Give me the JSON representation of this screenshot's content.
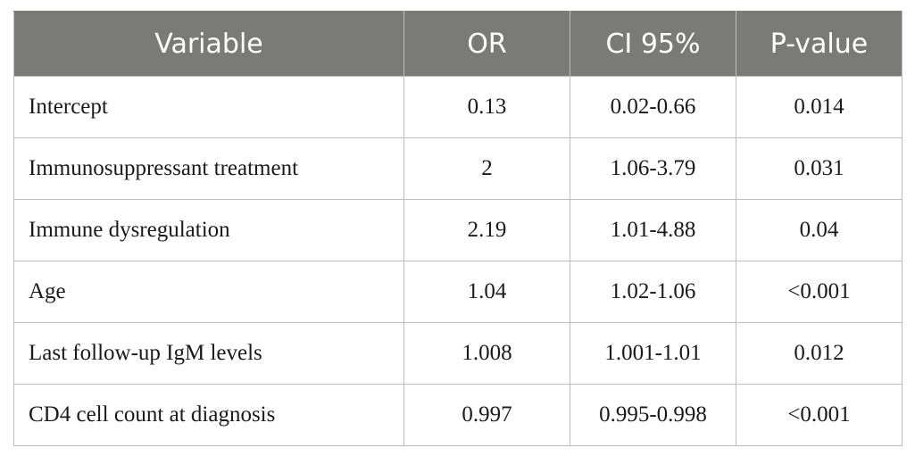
{
  "table": {
    "headers": [
      "Variable",
      "OR",
      "CI 95%",
      "P-value"
    ],
    "rows": [
      {
        "variable": "Intercept",
        "or": "0.13",
        "ci": "0.02-0.66",
        "p": "0.014"
      },
      {
        "variable": "Immunosuppressant treatment",
        "or": "2",
        "ci": "1.06-3.79",
        "p": "0.031"
      },
      {
        "variable": "Immune dysregulation",
        "or": "2.19",
        "ci": "1.01-4.88",
        "p": "0.04"
      },
      {
        "variable": "Age",
        "or": "1.04",
        "ci": "1.02-1.06",
        "p": "<0.001"
      },
      {
        "variable": "Last follow-up IgM levels",
        "or": "1.008",
        "ci": "1.001-1.01",
        "p": "0.012"
      },
      {
        "variable": "CD4 cell count at diagnosis",
        "or": "0.997",
        "ci": "0.995-0.998",
        "p": "<0.001"
      }
    ]
  }
}
